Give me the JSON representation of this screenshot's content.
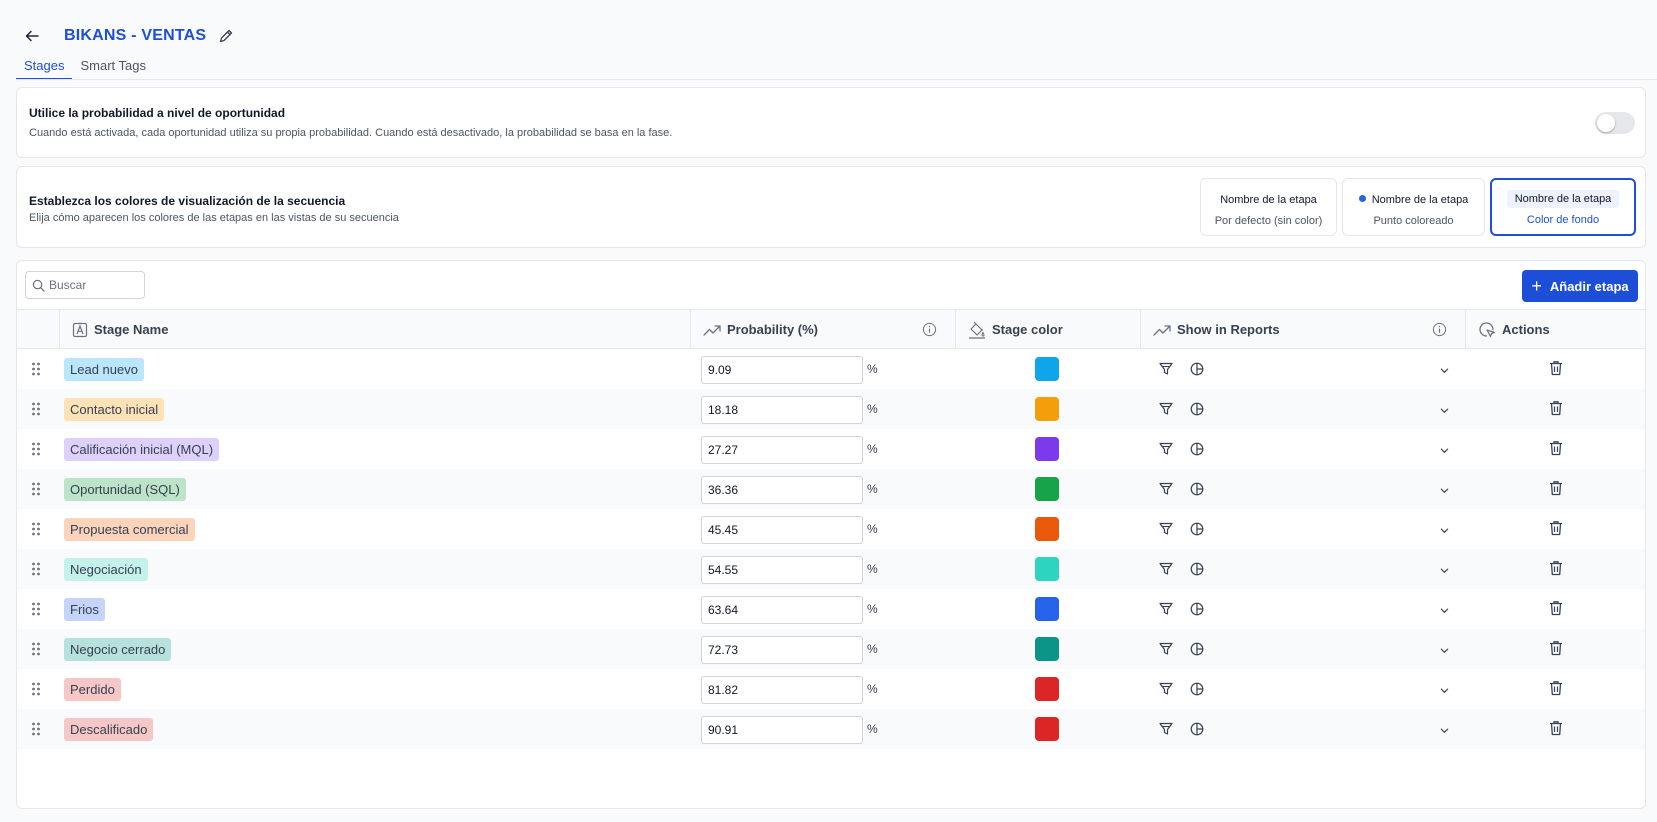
{
  "header": {
    "title": "BIKANS - VENTAS"
  },
  "tabs": [
    {
      "label": "Stages",
      "active": true
    },
    {
      "label": "Smart Tags",
      "active": false
    }
  ],
  "probability_setting": {
    "title": "Utilice la probabilidad a nivel de oportunidad",
    "description": "Cuando está activada, cada oportunidad utiliza su propia probabilidad. Cuando está desactivado, la probabilidad se basa en la fase.",
    "enabled": false
  },
  "display_colors": {
    "title": "Establezca los colores de visualización de la secuencia",
    "description": "Elija cómo aparecen los colores de las etapas en las vistas de su secuencia",
    "options": [
      {
        "name": "Nombre de la etapa",
        "desc": "Por defecto (sin color)"
      },
      {
        "name": "Nombre de la etapa",
        "desc": "Punto coloreado"
      },
      {
        "name": "Nombre de la etapa",
        "desc": "Color de fondo",
        "selected": true
      }
    ]
  },
  "toolbar": {
    "search_placeholder": "Buscar",
    "add_label": "Añadir etapa"
  },
  "table": {
    "columns": {
      "name": "Stage Name",
      "probability": "Probability (%)",
      "color": "Stage color",
      "reports": "Show in Reports",
      "actions": "Actions"
    },
    "pct_symbol": "%",
    "rows": [
      {
        "name": "Lead nuevo",
        "probability": "9.09",
        "color": "#0ea5e9",
        "chip_bg": "#bae6fd"
      },
      {
        "name": "Contacto inicial",
        "probability": "18.18",
        "color": "#f59e0b",
        "chip_bg": "#fde2b8"
      },
      {
        "name": "Calificación inicial (MQL)",
        "probability": "27.27",
        "color": "#7c3aed",
        "chip_bg": "#ddd0fb"
      },
      {
        "name": "Oportunidad (SQL)",
        "probability": "36.36",
        "color": "#16a34a",
        "chip_bg": "#bde3c8"
      },
      {
        "name": "Propuesta comercial",
        "probability": "45.45",
        "color": "#ea580c",
        "chip_bg": "#fcd3bb"
      },
      {
        "name": "Negociación",
        "probability": "54.55",
        "color": "#2dd4bf",
        "chip_bg": "#c4f1ea"
      },
      {
        "name": "Frios",
        "probability": "63.64",
        "color": "#2563eb",
        "chip_bg": "#c5d5fa"
      },
      {
        "name": "Negocio cerrado",
        "probability": "72.73",
        "color": "#0d9488",
        "chip_bg": "#b7e1dc"
      },
      {
        "name": "Perdido",
        "probability": "81.82",
        "color": "#dc2626",
        "chip_bg": "#f6c7c7"
      },
      {
        "name": "Descalificado",
        "probability": "90.91",
        "color": "#dc2626",
        "chip_bg": "#f6c7c7"
      }
    ]
  }
}
